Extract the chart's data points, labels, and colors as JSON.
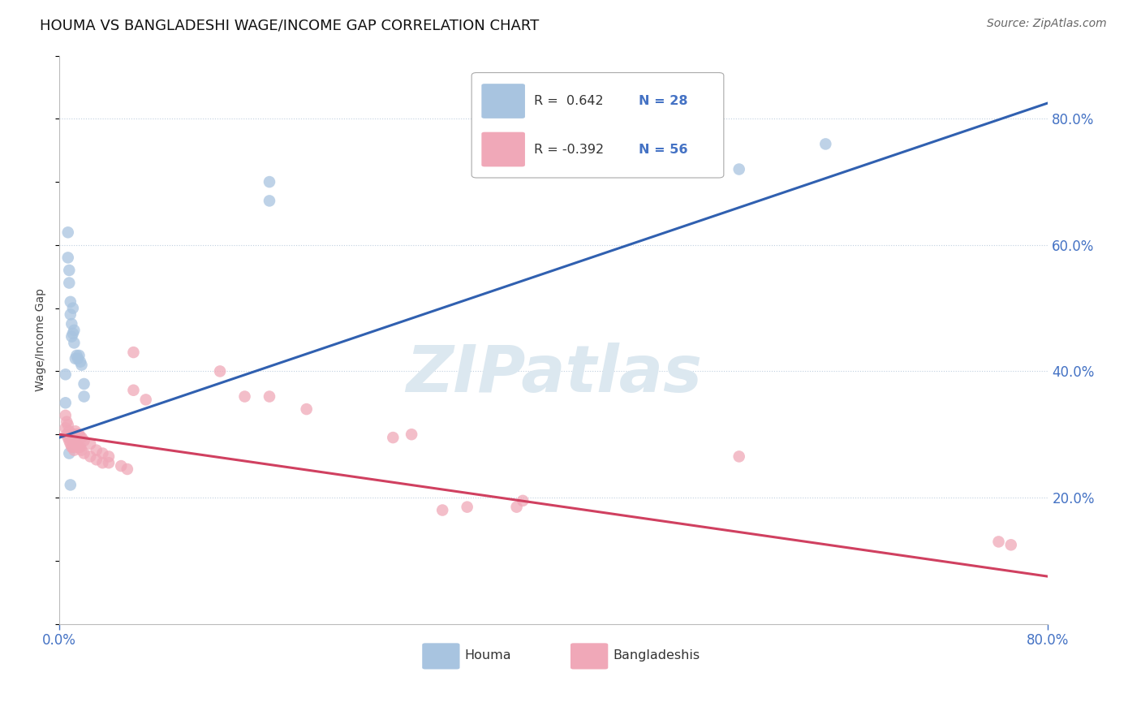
{
  "title": "HOUMA VS BANGLADESHI WAGE/INCOME GAP CORRELATION CHART",
  "source": "Source: ZipAtlas.com",
  "ylabel": "Wage/Income Gap",
  "right_yticks": [
    "80.0%",
    "60.0%",
    "40.0%",
    "20.0%"
  ],
  "right_ytick_vals": [
    0.8,
    0.6,
    0.4,
    0.2
  ],
  "blue_color": "#a8c4e0",
  "pink_color": "#f0a8b8",
  "blue_line_color": "#3060b0",
  "pink_line_color": "#d04060",
  "houma_x": [
    0.005,
    0.005,
    0.007,
    0.007,
    0.008,
    0.008,
    0.009,
    0.009,
    0.01,
    0.01,
    0.011,
    0.011,
    0.012,
    0.012,
    0.013,
    0.014,
    0.015,
    0.016,
    0.017,
    0.018,
    0.02,
    0.02,
    0.008,
    0.009,
    0.17,
    0.17,
    0.55,
    0.62
  ],
  "houma_y": [
    0.395,
    0.35,
    0.58,
    0.62,
    0.54,
    0.56,
    0.49,
    0.51,
    0.455,
    0.475,
    0.46,
    0.5,
    0.445,
    0.465,
    0.42,
    0.425,
    0.42,
    0.425,
    0.415,
    0.41,
    0.38,
    0.36,
    0.27,
    0.22,
    0.67,
    0.7,
    0.72,
    0.76
  ],
  "bangladeshi_x": [
    0.005,
    0.005,
    0.006,
    0.006,
    0.007,
    0.007,
    0.008,
    0.008,
    0.009,
    0.009,
    0.01,
    0.01,
    0.011,
    0.011,
    0.012,
    0.012,
    0.013,
    0.013,
    0.014,
    0.014,
    0.015,
    0.015,
    0.016,
    0.016,
    0.017,
    0.017,
    0.018,
    0.018,
    0.02,
    0.02,
    0.025,
    0.025,
    0.03,
    0.03,
    0.035,
    0.035,
    0.04,
    0.04,
    0.05,
    0.055,
    0.06,
    0.07,
    0.13,
    0.15,
    0.17,
    0.2,
    0.27,
    0.285,
    0.31,
    0.33,
    0.37,
    0.375,
    0.55,
    0.76,
    0.77,
    0.06
  ],
  "bangladeshi_y": [
    0.31,
    0.33,
    0.3,
    0.32,
    0.295,
    0.315,
    0.29,
    0.305,
    0.285,
    0.3,
    0.28,
    0.295,
    0.28,
    0.3,
    0.275,
    0.3,
    0.285,
    0.305,
    0.28,
    0.3,
    0.28,
    0.3,
    0.28,
    0.3,
    0.28,
    0.295,
    0.275,
    0.295,
    0.27,
    0.29,
    0.265,
    0.285,
    0.26,
    0.275,
    0.255,
    0.27,
    0.255,
    0.265,
    0.25,
    0.245,
    0.37,
    0.355,
    0.4,
    0.36,
    0.36,
    0.34,
    0.295,
    0.3,
    0.18,
    0.185,
    0.185,
    0.195,
    0.265,
    0.13,
    0.125,
    0.43
  ],
  "blue_line_x": [
    0.0,
    0.8
  ],
  "blue_line_y": [
    0.295,
    0.825
  ],
  "pink_line_x": [
    0.0,
    0.8
  ],
  "pink_line_y": [
    0.3,
    0.075
  ],
  "xmin": 0.0,
  "xmax": 0.8,
  "ymin": 0.0,
  "ymax": 0.9,
  "grid_color": "#c0d0e0",
  "background_color": "#ffffff",
  "watermark_text": "ZIPatlas",
  "watermark_color": "#dce8f0"
}
